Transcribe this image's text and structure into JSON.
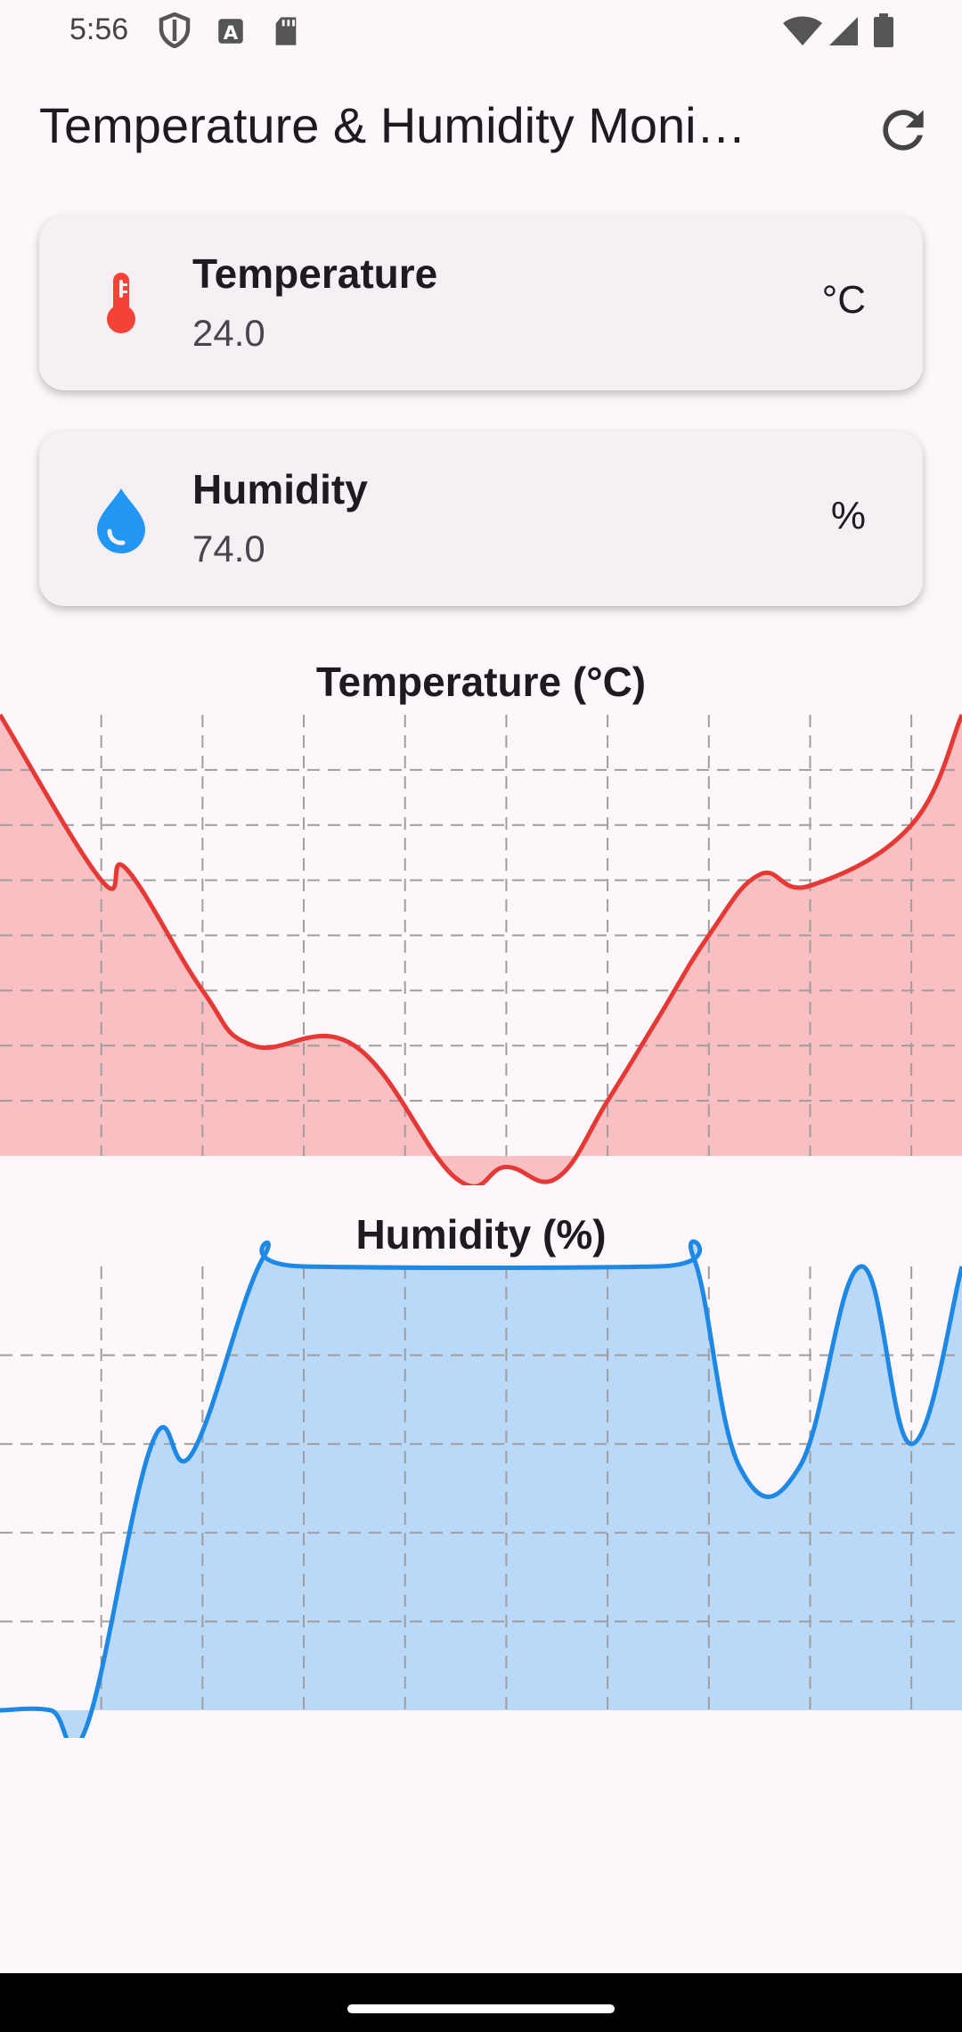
{
  "status_bar": {
    "time": "5:56",
    "left_icons": [
      "shield-icon",
      "text-a-icon",
      "sd-card-icon"
    ],
    "right_icons": [
      "wifi-icon",
      "cellular-signal-icon",
      "battery-icon"
    ]
  },
  "app_bar": {
    "title": "Temperature & Humidity Moni…",
    "refresh_icon": "refresh-icon"
  },
  "cards": {
    "temperature": {
      "icon": "thermometer-icon",
      "color": "#f44336",
      "label": "Temperature",
      "value": "24.0",
      "unit": "°C"
    },
    "humidity": {
      "icon": "water-drop-icon",
      "color": "#2196f3",
      "label": "Humidity",
      "value": "74.0",
      "unit": "%"
    }
  },
  "chart_data": [
    {
      "type": "area",
      "title": "Temperature (°C)",
      "xlabel": "",
      "ylabel": "",
      "line_color": "#e53935",
      "fill_color": "#f9bfc2",
      "grid": true,
      "grid_style": "dashed",
      "x": [
        0,
        1,
        1.25,
        2,
        2.5,
        3.5,
        4.5,
        5,
        5.5,
        6,
        6.5,
        7,
        7.5,
        8,
        9,
        9.5
      ],
      "values": [
        28,
        25,
        25.2,
        23,
        22,
        22,
        19.6,
        19.8,
        19.6,
        21,
        22.5,
        24,
        25.1,
        24.9,
        26,
        28
      ]
    },
    {
      "type": "area",
      "title": "Humidity (%)",
      "xlabel": "",
      "ylabel": "",
      "line_color": "#1e88e5",
      "fill_color": "#bad8f8",
      "grid": true,
      "grid_style": "dashed",
      "x": [
        0,
        0.5,
        0.85,
        1.5,
        1.9,
        2.6,
        3,
        6.5,
        6.85,
        7.3,
        7.9,
        8.5,
        9,
        9.5
      ],
      "values": [
        66,
        66,
        65.6,
        72,
        71.8,
        76.2,
        76,
        76,
        76.2,
        71.5,
        71.5,
        76,
        72,
        76
      ]
    }
  ],
  "nav_bar": {
    "home_indicator": "home-indicator"
  }
}
